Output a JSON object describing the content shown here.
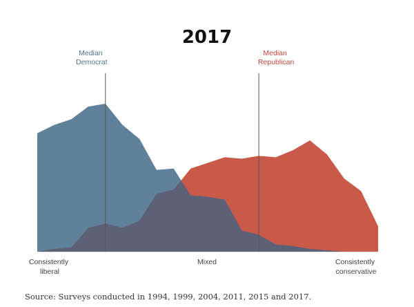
{
  "chart_data": {
    "type": "area",
    "title": "2017",
    "x": [
      0,
      1,
      2,
      3,
      4,
      5,
      6,
      7,
      8,
      9,
      10,
      11,
      12,
      13,
      14,
      15,
      16,
      17,
      18,
      19,
      20
    ],
    "series": [
      {
        "name": "Democrat",
        "color": "#5f8199",
        "values": [
          84,
          90,
          94,
          103,
          105,
          90,
          80,
          58,
          59,
          40,
          39,
          37,
          15,
          12,
          5,
          4,
          2,
          1,
          0,
          0,
          0
        ]
      },
      {
        "name": "Republican",
        "color": "#c95a49",
        "values": [
          0,
          2,
          3,
          17,
          20,
          17,
          22,
          41,
          44,
          59,
          63,
          67,
          66,
          68,
          67,
          72,
          79,
          69,
          52,
          43,
          18
        ]
      }
    ],
    "overlap_color": "#5c6178",
    "medians": [
      {
        "label_line1": "Median",
        "label_line2": "Democrat",
        "x": 4,
        "color": "#4d7490"
      },
      {
        "label_line1": "Median",
        "label_line2": "Republican",
        "x": 13,
        "color": "#c0473a"
      }
    ],
    "x_tick_labels": [
      {
        "line1": "Consistently",
        "line2": "liberal",
        "pos": "left"
      },
      {
        "line1": "Mixed",
        "line2": "",
        "pos": "center"
      },
      {
        "line1": "Consistently",
        "line2": "conservative",
        "pos": "right"
      }
    ],
    "ylim": [
      0,
      105
    ],
    "grid": false,
    "source": "Source: Surveys conducted in 1994, 1999, 2004, 2011, 2015 and 2017."
  }
}
